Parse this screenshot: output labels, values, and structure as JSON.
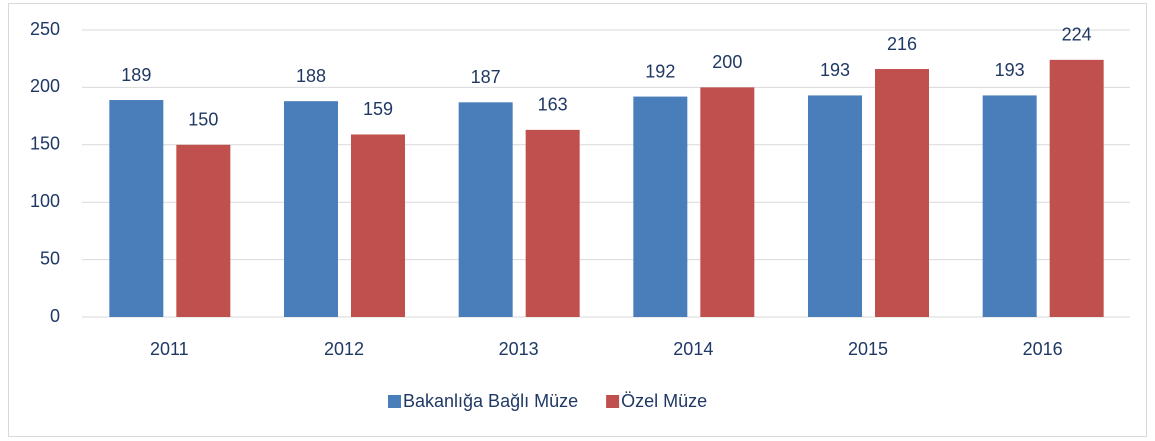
{
  "chart_data": {
    "type": "bar",
    "categories": [
      "2011",
      "2012",
      "2013",
      "2014",
      "2015",
      "2016"
    ],
    "series": [
      {
        "name": "Bakanlığa Bağlı Müze",
        "color": "#4a7ebb",
        "values": [
          189,
          188,
          187,
          192,
          193,
          193
        ]
      },
      {
        "name": "Özel Müze",
        "color": "#c0504d",
        "values": [
          150,
          159,
          163,
          200,
          216,
          224
        ]
      }
    ],
    "ylim": [
      0,
      250
    ],
    "yticks": [
      0,
      50,
      100,
      150,
      200,
      250
    ],
    "grid": true,
    "legend": "bottom"
  }
}
